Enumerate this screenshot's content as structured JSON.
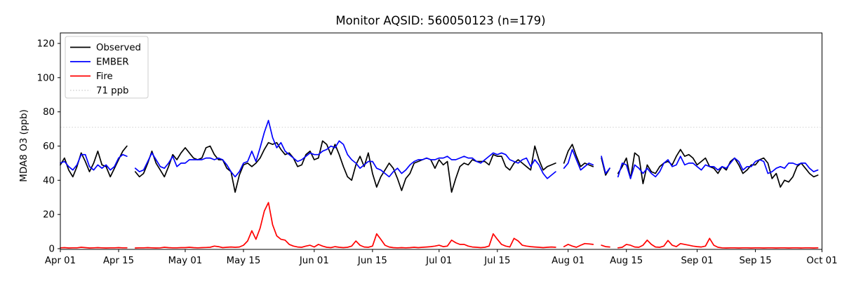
{
  "chart_data": {
    "type": "line",
    "title": "Monitor AQSID: 560050123 (n=179)",
    "xlabel": "",
    "ylabel": "MDA8 O3 (ppb)",
    "n_points": 179,
    "grid": false,
    "legend_position": "upper left",
    "x_start_label": "Apr 01",
    "x_end_label": "Oct 01",
    "n_days": 183,
    "ylim": [
      0,
      126
    ],
    "y_ticks": [
      0,
      20,
      40,
      60,
      80,
      100,
      120
    ],
    "x_ticks": [
      {
        "day": 0,
        "label": "Apr 01"
      },
      {
        "day": 14,
        "label": "Apr 15"
      },
      {
        "day": 30,
        "label": "May 01"
      },
      {
        "day": 44,
        "label": "May 15"
      },
      {
        "day": 61,
        "label": "Jun 01"
      },
      {
        "day": 75,
        "label": "Jun 15"
      },
      {
        "day": 91,
        "label": "Jul 01"
      },
      {
        "day": 105,
        "label": "Jul 15"
      },
      {
        "day": 122,
        "label": "Aug 01"
      },
      {
        "day": 136,
        "label": "Aug 15"
      },
      {
        "day": 153,
        "label": "Sep 01"
      },
      {
        "day": 167,
        "label": "Sep 15"
      },
      {
        "day": 183,
        "label": "Oct 01"
      }
    ],
    "reference_line": {
      "label": "71 ppb",
      "value": 71,
      "color": "#d9d9d9",
      "style": "dotted"
    },
    "missing_dates": [
      "Apr 18",
      "Jul 30",
      "Aug 08",
      "Aug 12"
    ],
    "series": [
      {
        "name": "Observed",
        "color": "#000000",
        "values": [
          49,
          53,
          46,
          42,
          48,
          56,
          51,
          45,
          50,
          57,
          49,
          48,
          42,
          47,
          52,
          57,
          60,
          null,
          45,
          42,
          44,
          50,
          57,
          50,
          46,
          42,
          48,
          55,
          52,
          56,
          59,
          56,
          53,
          52,
          53,
          59,
          60,
          55,
          52,
          52,
          47,
          45,
          33,
          43,
          49,
          50,
          48,
          50,
          53,
          58,
          62,
          61,
          62,
          58,
          55,
          56,
          53,
          48,
          49,
          55,
          57,
          52,
          53,
          63,
          61,
          55,
          61,
          55,
          48,
          42,
          40,
          49,
          54,
          48,
          56,
          44,
          36,
          42,
          46,
          50,
          47,
          41,
          34,
          41,
          44,
          50,
          51,
          52,
          53,
          52,
          47,
          52,
          49,
          51,
          33,
          41,
          48,
          50,
          49,
          52,
          51,
          51,
          51,
          49,
          55,
          54,
          54,
          48,
          46,
          50,
          52,
          50,
          48,
          46,
          60,
          52,
          46,
          48,
          49,
          50,
          null,
          50,
          57,
          61,
          54,
          48,
          50,
          49,
          48,
          null,
          53,
          43,
          47,
          null,
          44,
          48,
          53,
          41,
          56,
          54,
          38,
          49,
          45,
          44,
          48,
          50,
          51,
          49,
          54,
          58,
          54,
          55,
          53,
          49,
          51,
          53,
          48,
          47,
          44,
          48,
          46,
          51,
          53,
          49,
          44,
          46,
          49,
          49,
          52,
          53,
          50,
          41,
          44,
          36,
          40,
          39,
          42,
          48,
          50,
          47,
          44,
          42,
          43
        ]
      },
      {
        "name": "EMBER",
        "color": "#0000ff",
        "values": [
          50,
          51,
          48,
          46,
          49,
          55,
          55,
          48,
          46,
          49,
          47,
          49,
          46,
          48,
          53,
          55,
          54,
          null,
          47,
          45,
          46,
          51,
          56,
          52,
          48,
          47,
          50,
          54,
          48,
          50,
          50,
          52,
          52,
          52,
          52,
          53,
          53,
          52,
          53,
          52,
          49,
          45,
          42,
          45,
          50,
          51,
          57,
          51,
          59,
          68,
          75,
          65,
          59,
          62,
          57,
          55,
          53,
          51,
          52,
          54,
          56,
          55,
          55,
          57,
          58,
          60,
          59,
          63,
          61,
          55,
          52,
          50,
          47,
          49,
          51,
          51,
          47,
          46,
          44,
          42,
          45,
          47,
          44,
          46,
          49,
          51,
          52,
          52,
          53,
          52,
          52,
          53,
          53,
          54,
          52,
          52,
          53,
          54,
          53,
          53,
          51,
          50,
          52,
          54,
          56,
          55,
          56,
          55,
          52,
          51,
          50,
          52,
          53,
          48,
          52,
          49,
          44,
          41,
          43,
          45,
          null,
          47,
          50,
          58,
          52,
          46,
          48,
          50,
          49,
          null,
          54,
          44,
          47,
          null,
          42,
          50,
          49,
          41,
          49,
          47,
          44,
          47,
          44,
          42,
          45,
          50,
          52,
          48,
          49,
          54,
          49,
          50,
          50,
          48,
          46,
          49,
          48,
          48,
          46,
          48,
          47,
          50,
          53,
          51,
          46,
          48,
          48,
          51,
          52,
          51,
          44,
          45,
          47,
          48,
          47,
          50,
          50,
          49,
          50,
          50,
          47,
          45,
          46
        ]
      },
      {
        "name": "Fire",
        "color": "#ff0000",
        "values": [
          0.5,
          0.6,
          0.4,
          0.5,
          0.5,
          0.8,
          0.6,
          0.4,
          0.5,
          0.6,
          0.5,
          0.4,
          0.5,
          0.5,
          0.6,
          0.5,
          0.5,
          null,
          0.4,
          0.5,
          0.5,
          0.6,
          0.5,
          0.4,
          0.5,
          0.8,
          0.6,
          0.5,
          0.5,
          0.6,
          0.6,
          0.8,
          0.6,
          0.5,
          0.6,
          0.7,
          0.8,
          1.5,
          1.2,
          0.6,
          0.8,
          1.0,
          0.8,
          1.0,
          2.0,
          4.5,
          10.5,
          5.5,
          12,
          22,
          27,
          14,
          7.5,
          5.5,
          5.0,
          2.5,
          1.5,
          1.0,
          0.8,
          1.5,
          2.0,
          1.0,
          2.5,
          1.5,
          0.8,
          0.6,
          1.2,
          0.8,
          0.6,
          0.8,
          1.5,
          4.5,
          2.0,
          1.0,
          0.8,
          1.5,
          8.7,
          5.5,
          2.0,
          1.0,
          0.6,
          0.5,
          0.6,
          0.5,
          0.6,
          0.8,
          0.6,
          0.8,
          1.0,
          1.2,
          1.5,
          2.0,
          1.2,
          1.5,
          5.0,
          3.5,
          2.5,
          2.5,
          1.5,
          1.0,
          0.8,
          0.6,
          0.8,
          1.5,
          8.7,
          5.5,
          2.5,
          1.5,
          1.0,
          6.0,
          4.5,
          2.0,
          1.5,
          1.2,
          1.0,
          0.8,
          0.6,
          0.8,
          1.0,
          0.8,
          null,
          1.2,
          2.5,
          1.5,
          0.8,
          2.0,
          3.0,
          2.8,
          2.5,
          null,
          2.0,
          1.2,
          1.0,
          null,
          0.5,
          0.8,
          2.5,
          2.0,
          1.0,
          0.8,
          2.0,
          5.0,
          2.5,
          1.0,
          0.8,
          1.5,
          4.8,
          2.0,
          1.2,
          3.0,
          2.5,
          2.0,
          1.5,
          1.2,
          1.0,
          1.5,
          6.0,
          2.0,
          0.8,
          0.5,
          0.4,
          0.5,
          0.5,
          0.4,
          0.5,
          0.5,
          0.4,
          0.5,
          0.5,
          0.4,
          0.5,
          0.5,
          0.4,
          0.5,
          0.5,
          0.4,
          0.5,
          0.5,
          0.4,
          0.5,
          0.5,
          0.4,
          0.5
        ]
      }
    ],
    "legend": {
      "items": [
        "Observed",
        "EMBER",
        "Fire",
        "71 ppb"
      ]
    }
  }
}
